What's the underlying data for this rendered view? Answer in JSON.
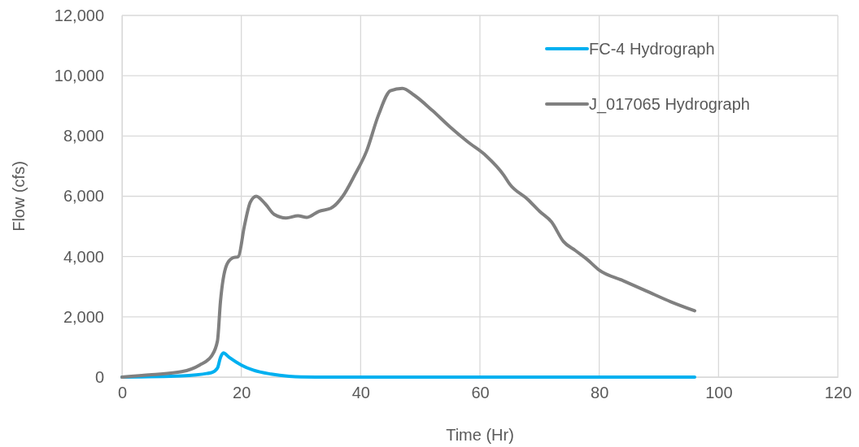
{
  "chart_data": {
    "type": "line",
    "xlabel": "Time (Hr)",
    "ylabel": "Flow (cfs)",
    "xlim": [
      0,
      120
    ],
    "xticks": [
      0,
      20,
      40,
      60,
      80,
      100,
      120
    ],
    "ylim": [
      0,
      12000
    ],
    "yticks": [
      {
        "value": 0,
        "label": "0"
      },
      {
        "value": 2000,
        "label": "2,000"
      },
      {
        "value": 4000,
        "label": "4,000"
      },
      {
        "value": 6000,
        "label": "6,000"
      },
      {
        "value": 8000,
        "label": "8,000"
      },
      {
        "value": 10000,
        "label": "10,000"
      },
      {
        "value": 12000,
        "label": "12,000"
      }
    ],
    "grid": true,
    "legend": "top right",
    "marker": "none",
    "line_style": "solid",
    "series": [
      {
        "name": "FC-4 Hydrograph",
        "color": "#00b0f0",
        "x": [
          0,
          10,
          15,
          16,
          16.5,
          17,
          18,
          20,
          22,
          25,
          28,
          30,
          35,
          96
        ],
        "values": [
          0,
          40,
          150,
          300,
          650,
          800,
          650,
          400,
          230,
          100,
          30,
          10,
          0,
          0
        ]
      },
      {
        "name": "J_017065 Hydrograph",
        "color": "#808080",
        "x": [
          0,
          5,
          10,
          13,
          15,
          16,
          16.5,
          17.5,
          18.5,
          19.5,
          20.5,
          21.5,
          22.5,
          24,
          25.5,
          27.5,
          29.5,
          31,
          33,
          35,
          37,
          39,
          41,
          43,
          45,
          47,
          49,
          52,
          55,
          58,
          61,
          64,
          65,
          68,
          70,
          72,
          74,
          76,
          78,
          80,
          84,
          88,
          92,
          96
        ],
        "values": [
          0,
          80,
          180,
          400,
          700,
          1200,
          2500,
          3700,
          3950,
          4000,
          5000,
          5800,
          6000,
          5750,
          5400,
          5280,
          5350,
          5300,
          5500,
          5600,
          6000,
          6700,
          7500,
          8700,
          9500,
          9580,
          9350,
          8850,
          8300,
          7800,
          7350,
          6700,
          6400,
          5900,
          5500,
          5150,
          4500,
          4200,
          3900,
          3550,
          3200,
          2850,
          2500,
          2200
        ]
      }
    ]
  }
}
